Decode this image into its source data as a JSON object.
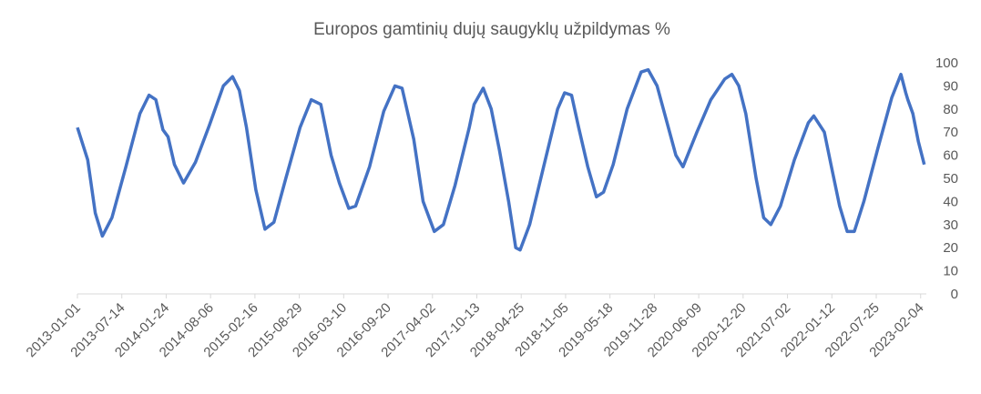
{
  "chart_data": {
    "type": "line",
    "title": "Europos gamtinių dujų saugyklų užpildymas %",
    "x": [
      "2013-01-01",
      "2013-02-15",
      "2013-03-20",
      "2013-04-20",
      "2013-06-01",
      "2013-08-01",
      "2013-10-01",
      "2013-11-10",
      "2013-12-10",
      "2014-01-10",
      "2014-02-01",
      "2014-03-01",
      "2014-04-10",
      "2014-06-01",
      "2014-08-01",
      "2014-10-01",
      "2014-11-10",
      "2014-12-10",
      "2015-01-10",
      "2015-02-20",
      "2015-04-01",
      "2015-05-10",
      "2015-07-01",
      "2015-09-01",
      "2015-10-20",
      "2015-12-01",
      "2016-01-15",
      "2016-02-20",
      "2016-04-01",
      "2016-05-01",
      "2016-07-01",
      "2016-09-01",
      "2016-10-20",
      "2016-11-20",
      "2017-01-10",
      "2017-02-20",
      "2017-04-10",
      "2017-05-20",
      "2017-07-10",
      "2017-09-10",
      "2017-10-01",
      "2017-11-10",
      "2017-12-15",
      "2018-01-20",
      "2018-03-01",
      "2018-04-01",
      "2018-04-20",
      "2018-06-01",
      "2018-08-01",
      "2018-10-01",
      "2018-11-01",
      "2018-12-01",
      "2019-01-01",
      "2019-02-10",
      "2019-03-20",
      "2019-04-20",
      "2019-06-01",
      "2019-08-01",
      "2019-10-01",
      "2019-11-01",
      "2019-12-10",
      "2020-01-20",
      "2020-03-01",
      "2020-04-01",
      "2020-06-01",
      "2020-08-01",
      "2020-10-01",
      "2020-11-01",
      "2020-12-01",
      "2021-01-01",
      "2021-02-15",
      "2021-03-20",
      "2021-04-20",
      "2021-06-01",
      "2021-08-01",
      "2021-10-01",
      "2021-10-25",
      "2021-12-10",
      "2022-01-10",
      "2022-02-15",
      "2022-03-20",
      "2022-04-20",
      "2022-06-01",
      "2022-08-01",
      "2022-10-01",
      "2022-11-10",
      "2022-12-01",
      "2022-12-10",
      "2023-01-01",
      "2023-01-25",
      "2023-02-20"
    ],
    "series": [
      {
        "name": "užpildymas",
        "color": "#4472c4",
        "values": [
          72,
          58,
          35,
          25,
          33,
          55,
          78,
          86,
          84,
          71,
          68,
          56,
          48,
          57,
          73,
          90,
          94,
          88,
          72,
          45,
          28,
          31,
          50,
          72,
          84,
          82,
          60,
          48,
          37,
          38,
          55,
          79,
          90,
          89,
          67,
          40,
          27,
          30,
          47,
          72,
          82,
          89,
          80,
          62,
          40,
          20,
          19,
          30,
          55,
          80,
          87,
          86,
          72,
          55,
          42,
          44,
          56,
          80,
          96,
          97,
          90,
          75,
          60,
          55,
          70,
          84,
          93,
          95,
          90,
          78,
          50,
          33,
          30,
          38,
          58,
          74,
          77,
          70,
          55,
          38,
          27,
          27,
          40,
          63,
          85,
          95,
          87,
          84,
          78,
          66,
          56
        ]
      }
    ],
    "xlim": [
      "2013-01-01",
      "2023-03-01"
    ],
    "xticks": [
      "2013-01-01",
      "2013-07-14",
      "2014-01-24",
      "2014-08-06",
      "2015-02-16",
      "2015-08-29",
      "2016-03-10",
      "2016-09-20",
      "2017-04-02",
      "2017-10-13",
      "2018-04-25",
      "2018-11-05",
      "2019-05-18",
      "2019-11-28",
      "2020-06-09",
      "2020-12-20",
      "2021-07-02",
      "2022-01-12",
      "2022-07-25",
      "2023-02-04"
    ],
    "ylim": [
      0,
      100
    ],
    "yticks": [
      0,
      10,
      20,
      30,
      40,
      50,
      60,
      70,
      80,
      90,
      100
    ],
    "grid": false
  }
}
